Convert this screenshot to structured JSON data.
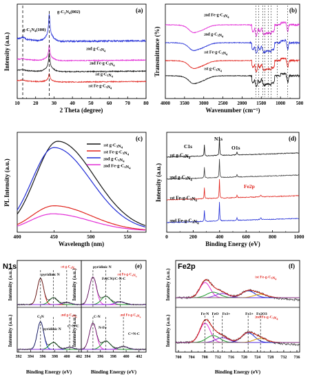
{
  "colors": {
    "black": "#111111",
    "red": "#e0221b",
    "blue": "#1f2bd6",
    "magenta": "#e22bd6",
    "green": "#1a9a2a",
    "dark": "#3a3a3a"
  },
  "chart_data": [
    {
      "id": "a",
      "label": "(a)",
      "type": "line",
      "xlabel": "2 Theta (degree)",
      "ylabel": "Intensity (a.u.)",
      "xlim": [
        10,
        80
      ],
      "xticks": [
        "10",
        "20",
        "30",
        "40",
        "50",
        "60",
        "70",
        "80"
      ],
      "annotations": [
        "g-C3N4(100)",
        "g-C3N4(002)"
      ],
      "series": [
        {
          "name": "1st Fe-g-C3N4",
          "color": "red",
          "peaks": [
            [
              13,
              0.02
            ],
            [
              27.4,
              0.12
            ]
          ]
        },
        {
          "name": "1st g-C3N4",
          "color": "black",
          "peaks": [
            [
              13,
              0.03
            ],
            [
              27.4,
              0.28
            ]
          ]
        },
        {
          "name": "2nd Fe-g-C3N4",
          "color": "magenta",
          "peaks": [
            [
              13,
              0.03
            ],
            [
              27.4,
              0.25
            ]
          ]
        },
        {
          "name": "2nd g-C3N4",
          "color": "blue",
          "peaks": [
            [
              13,
              0.06
            ],
            [
              27.4,
              0.55
            ]
          ]
        }
      ]
    },
    {
      "id": "b",
      "label": "(b)",
      "type": "line",
      "xlabel": "Wavenumber (cm⁻¹)",
      "ylabel": "Transmittance (%)",
      "xlim": [
        4000,
        500
      ],
      "xticks": [
        "4000",
        "3500",
        "3000",
        "2500",
        "2000",
        "1500",
        "1000",
        "500"
      ],
      "series": [
        {
          "name": "2nd Fe-g-C3N4",
          "color": "magenta"
        },
        {
          "name": "2nd g-C3N4",
          "color": "blue"
        },
        {
          "name": "1st Fe-g-C3N4",
          "color": "red"
        },
        {
          "name": "1st g-C3N4",
          "color": "black"
        }
      ]
    },
    {
      "id": "c",
      "label": "(c)",
      "type": "line",
      "xlabel": "Wavelength (nm)",
      "ylabel": "PL Intensity (a.u.)",
      "xlim": [
        400,
        575
      ],
      "xticks": [
        "400",
        "450",
        "500",
        "550"
      ],
      "series": [
        {
          "name": "1st g-C3N4",
          "color": "black",
          "amp": 1.0,
          "center": 455
        },
        {
          "name": "1st Fe-g-C3N4",
          "color": "red",
          "amp": 0.28,
          "center": 450
        },
        {
          "name": "2nd g-C3N4",
          "color": "blue",
          "amp": 0.93,
          "center": 450
        },
        {
          "name": "2nd Fe-g-C3N4",
          "color": "magenta",
          "amp": 0.19,
          "center": 448
        }
      ]
    },
    {
      "id": "d",
      "label": "(d)",
      "type": "line",
      "xlabel": "Binding Energy (eV)",
      "ylabel": "Intensity (a.u.)",
      "xlim": [
        0,
        1000
      ],
      "xticks": [
        "0",
        "200",
        "400",
        "600",
        "800",
        "1000"
      ],
      "annotations": [
        "C1s",
        "N1s",
        "O1s",
        "Fe2p"
      ],
      "series": [
        {
          "name": "1st g-C3N4",
          "color": "black"
        },
        {
          "name": "2nd g-C3N4",
          "color": "dark"
        },
        {
          "name": "1st Fe-g-C3N4",
          "color": "red"
        },
        {
          "name": "2nd Fe-g-C3N4",
          "color": "blue"
        }
      ]
    },
    {
      "id": "e",
      "label": "(e)",
      "type": "line",
      "title": "N1s",
      "xlabel": "Binding Energy (eV)",
      "ylabel": "Intensity (a.u.)",
      "xticks_left": [
        "392",
        "394",
        "396",
        "398",
        "400",
        "402"
      ],
      "xticks_right": [
        "394",
        "396",
        "398",
        "400",
        "402"
      ],
      "samples": [
        "1st g-C3N4",
        "1st Fe-g-C3N4",
        "2nd g-C3N4",
        "2nd Fe-g-C3N4"
      ],
      "annotations": [
        "pyridinic N",
        "pyridinic N",
        "Fe(CN)/C-N-C",
        "C-N",
        "pyridinic N",
        "C=N-C",
        "C-N",
        "N-Fe",
        "C=N-C"
      ]
    },
    {
      "id": "f",
      "label": "(f)",
      "type": "line",
      "title": "Fe2p",
      "xlabel": "Binding Energy (eV)",
      "ylabel": "Intensity (a.u.)",
      "xticks": [
        "700",
        "704",
        "708",
        "712",
        "716",
        "720",
        "724",
        "728",
        "732",
        "736"
      ],
      "samples": [
        "1st Fe-g-C3N4",
        "2nd Fe-g-C3N4"
      ],
      "annotations": [
        "Fe-N",
        "FeO",
        "Fe3+",
        "Fe3+",
        "Fe2O3"
      ]
    }
  ]
}
